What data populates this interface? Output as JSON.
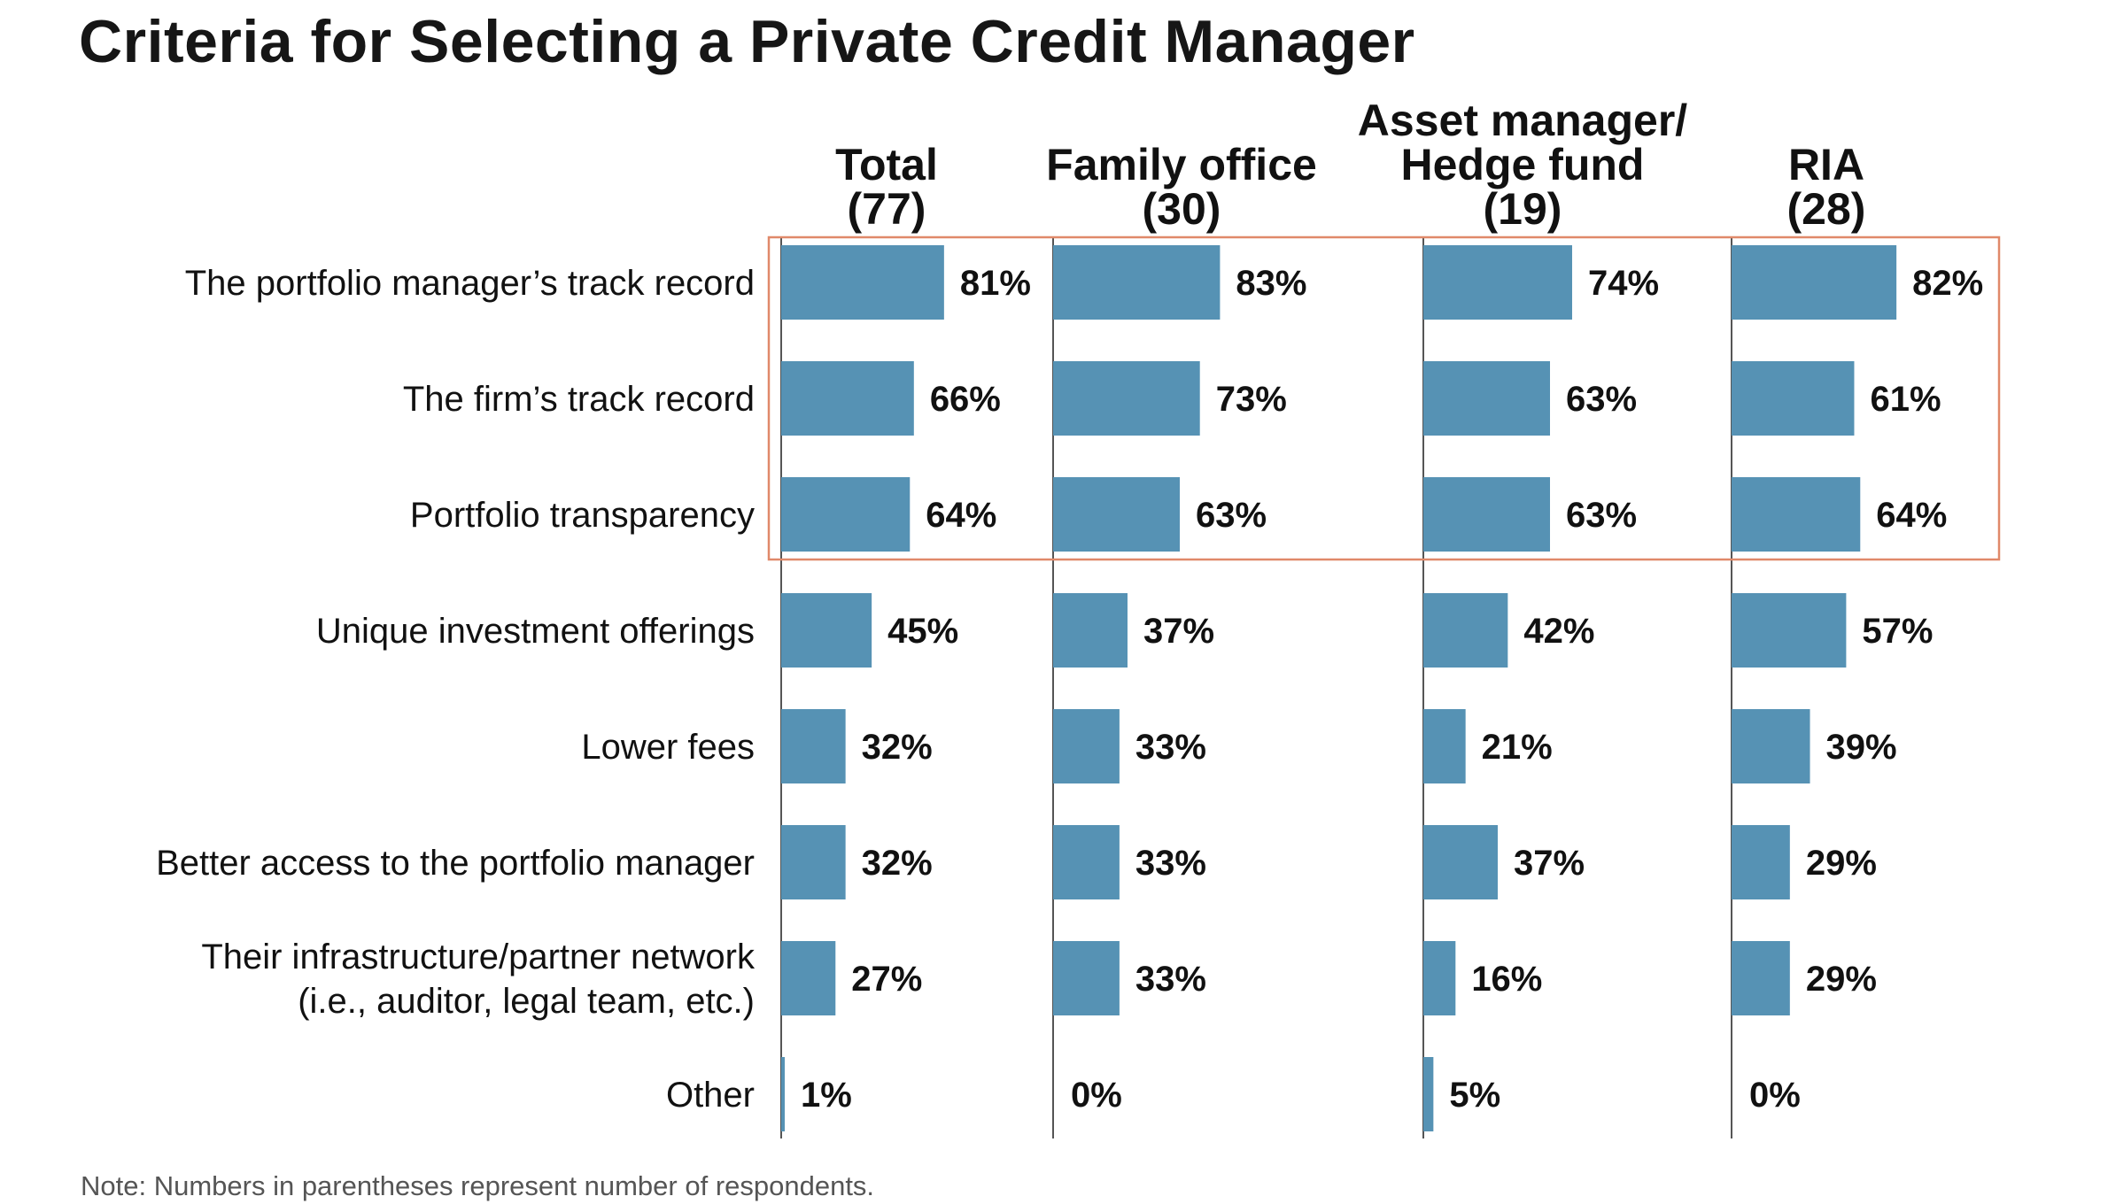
{
  "title": "Criteria for Selecting a Private Credit Manager",
  "note": "Note: Numbers in parentheses represent number of respondents.",
  "colors": {
    "bar": "#5692b4",
    "highlight_box": "#e0896a",
    "axis": "#555555",
    "text": "#111111"
  },
  "chart_data": {
    "type": "bar",
    "orientation": "horizontal",
    "title": "Criteria for Selecting a Private Credit Manager",
    "unit": "%",
    "categories": [
      "The portfolio manager’s track record",
      "The firm’s track record",
      "Portfolio transparency",
      "Unique investment offerings",
      "Lower fees",
      "Better access to the portfolio manager",
      "Their infrastructure/partner network (i.e., auditor, legal team, etc.)",
      "Other"
    ],
    "category_lines": [
      [
        "The portfolio manager’s track record"
      ],
      [
        "The firm’s track record"
      ],
      [
        "Portfolio transparency"
      ],
      [
        "Unique investment offerings"
      ],
      [
        "Lower fees"
      ],
      [
        "Better access to the portfolio manager"
      ],
      [
        "Their infrastructure/partner network",
        "(i.e., auditor, legal team, etc.)"
      ],
      [
        "Other"
      ]
    ],
    "series": [
      {
        "name": "Total (77)",
        "header_lines": [
          "Total",
          "(77)"
        ],
        "values": [
          81,
          66,
          64,
          45,
          32,
          32,
          27,
          1
        ]
      },
      {
        "name": "Family office (30)",
        "header_lines": [
          "Family office",
          "(30)"
        ],
        "values": [
          83,
          73,
          63,
          37,
          33,
          33,
          33,
          0
        ]
      },
      {
        "name": "Asset manager/ Hedge fund (19)",
        "header_lines": [
          "Asset manager/",
          "Hedge fund",
          "(19)"
        ],
        "values": [
          74,
          63,
          63,
          42,
          21,
          37,
          16,
          5
        ]
      },
      {
        "name": "RIA (28)",
        "header_lines": [
          "RIA",
          "(28)"
        ],
        "values": [
          82,
          61,
          64,
          57,
          39,
          29,
          29,
          0
        ]
      }
    ],
    "highlighted_categories": [
      0,
      1,
      2
    ]
  }
}
